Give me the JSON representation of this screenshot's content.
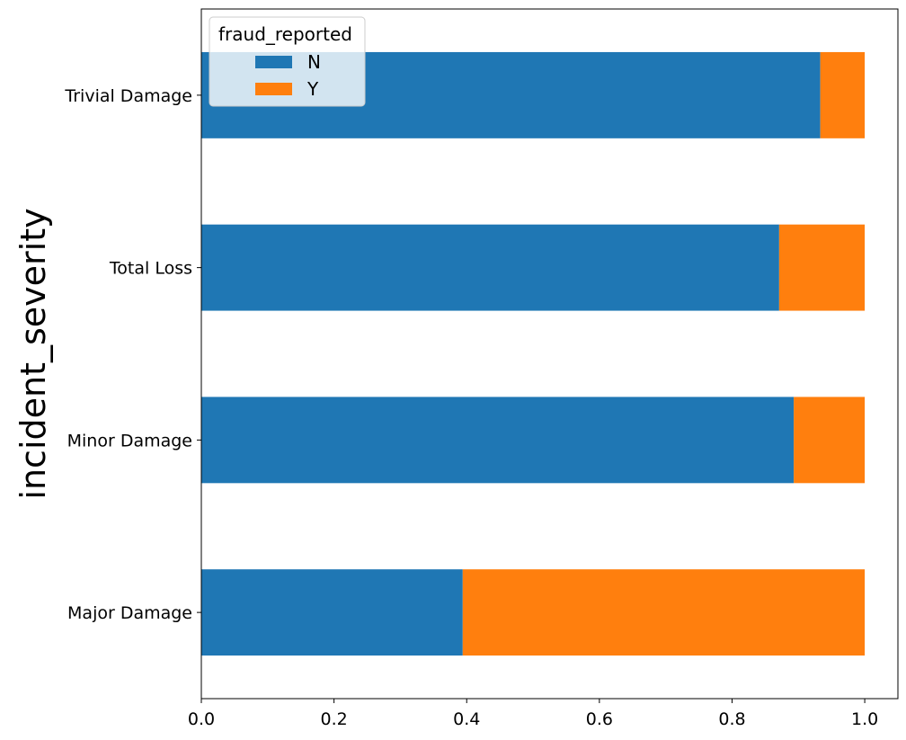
{
  "chart_data": {
    "type": "bar",
    "orientation": "horizontal",
    "stacked": true,
    "title": "",
    "xlabel": "",
    "ylabel": "incident_severity",
    "xlim": [
      0.0,
      1.05
    ],
    "xticks": [
      0.0,
      0.2,
      0.4,
      0.6,
      0.8,
      1.0
    ],
    "xtick_labels": [
      "0.0",
      "0.2",
      "0.4",
      "0.6",
      "0.8",
      "1.0"
    ],
    "grid": false,
    "categories": [
      "Major Damage",
      "Minor Damage",
      "Total Loss",
      "Trivial Damage"
    ],
    "series": [
      {
        "name": "N",
        "color": "#1f77b4",
        "values": [
          0.394,
          0.893,
          0.871,
          0.933
        ]
      },
      {
        "name": "Y",
        "color": "#ff7f0e",
        "values": [
          0.606,
          0.107,
          0.129,
          0.067
        ]
      }
    ],
    "legend": {
      "title": "fraud_reported",
      "placement": "upper-left"
    }
  }
}
